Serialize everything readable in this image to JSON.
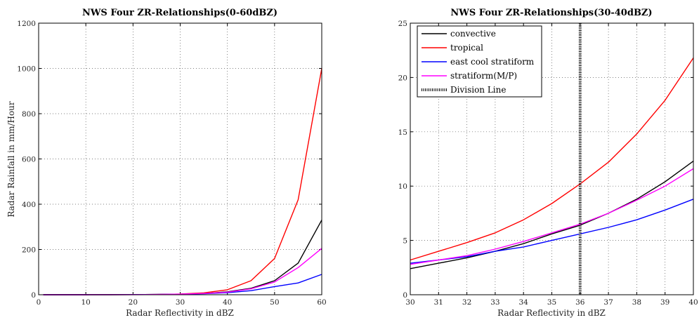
{
  "chart_data": [
    {
      "type": "line",
      "title": "NWS Four ZR-Relationships(0-60dBZ)",
      "xlabel": "Radar Reflectivity in dBZ",
      "ylabel": "Radar Rainfall in mm/Hour",
      "xlim": [
        0,
        60
      ],
      "ylim": [
        0,
        1200
      ],
      "xticks": [
        0,
        10,
        20,
        30,
        40,
        50,
        60
      ],
      "yticks": [
        0,
        200,
        400,
        600,
        800,
        1000,
        1200
      ],
      "grid": true,
      "x": [
        1,
        5,
        10,
        15,
        20,
        25,
        30,
        35,
        40,
        45,
        50,
        55,
        60
      ],
      "series": [
        {
          "color": "#000000",
          "values": [
            0.02,
            0.04,
            0.1,
            0.2,
            0.5,
            1.1,
            2.4,
            5.6,
            12.9,
            28.6,
            62,
            140,
            330
          ]
        },
        {
          "color": "#ff0000",
          "values": [
            0.01,
            0.02,
            0.07,
            0.2,
            0.5,
            1.3,
            3.2,
            8.5,
            22,
            62,
            160,
            420,
            1000
          ]
        },
        {
          "color": "#0000ff",
          "values": [
            0.04,
            0.07,
            0.15,
            0.3,
            0.6,
            1.2,
            2.4,
            4.7,
            9,
            18,
            36,
            52,
            90
          ]
        },
        {
          "color": "#ff00ff",
          "values": [
            0.02,
            0.04,
            0.09,
            0.2,
            0.4,
            1.0,
            2.8,
            5.6,
            11.5,
            26,
            56,
            120,
            205
          ]
        }
      ]
    },
    {
      "type": "line",
      "title": "NWS Four ZR-Relationships(30-40dBZ)",
      "xlabel": "Radar Reflectivity in dBZ",
      "ylabel": "",
      "xlim": [
        30,
        40
      ],
      "ylim": [
        0,
        25
      ],
      "xticks": [
        30,
        31,
        32,
        33,
        34,
        35,
        36,
        37,
        38,
        39,
        40
      ],
      "yticks": [
        0,
        5,
        10,
        15,
        20,
        25
      ],
      "grid": true,
      "legend_position": "top-left",
      "division_x": 36,
      "x": [
        30,
        31,
        32,
        33,
        34,
        35,
        36,
        37,
        38,
        39,
        40
      ],
      "series": [
        {
          "name": "convective",
          "color": "#000000",
          "values": [
            2.4,
            2.9,
            3.4,
            4.0,
            4.7,
            5.6,
            6.4,
            7.5,
            8.8,
            10.4,
            12.3
          ]
        },
        {
          "name": "tropical",
          "color": "#ff0000",
          "values": [
            3.2,
            4.0,
            4.8,
            5.7,
            6.9,
            8.4,
            10.2,
            12.2,
            14.8,
            17.9,
            21.8
          ]
        },
        {
          "name": "east cool stratiform",
          "color": "#0000ff",
          "values": [
            2.9,
            3.2,
            3.5,
            4.0,
            4.4,
            5.0,
            5.6,
            6.2,
            6.9,
            7.8,
            8.8
          ]
        },
        {
          "name": "stratiform(M/P)",
          "color": "#ff00ff",
          "values": [
            2.8,
            3.2,
            3.6,
            4.2,
            4.9,
            5.7,
            6.5,
            7.5,
            8.7,
            10.0,
            11.6
          ]
        },
        {
          "name": "Division Line",
          "color": "#000000",
          "style": "dotted"
        }
      ]
    }
  ]
}
